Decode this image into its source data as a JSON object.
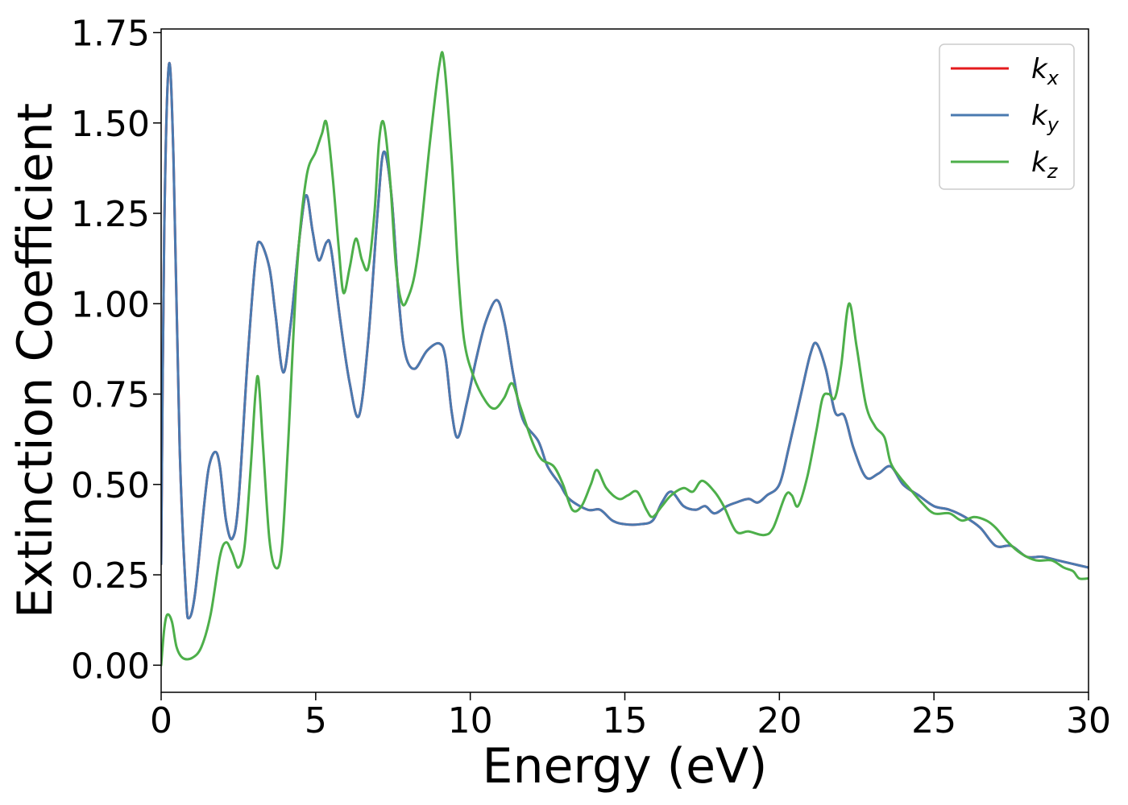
{
  "chart_data": {
    "type": "line",
    "title": "",
    "xlabel": "Energy (eV)",
    "ylabel": "Extinction Coefficient",
    "xlim": [
      0,
      30
    ],
    "ylim": [
      -0.075,
      1.76
    ],
    "x_ticks": [
      0,
      5,
      10,
      15,
      20,
      25,
      30
    ],
    "x_tick_labels": [
      "0",
      "5",
      "10",
      "15",
      "20",
      "25",
      "30"
    ],
    "y_ticks": [
      0,
      0.25,
      0.5,
      0.75,
      1.0,
      1.25,
      1.5,
      1.75
    ],
    "y_tick_labels": [
      "0.00",
      "0.25",
      "0.50",
      "0.75",
      "1.00",
      "1.25",
      "1.50",
      "1.75"
    ],
    "grid": false,
    "legend_position": "top-right",
    "series": [
      {
        "name": "k",
        "subscript": "x",
        "color": "#e41a1c",
        "points": [
          [
            0,
            0.28
          ],
          [
            0.1,
            1.2
          ],
          [
            0.25,
            1.66
          ],
          [
            0.4,
            1.4
          ],
          [
            0.6,
            0.6
          ],
          [
            0.8,
            0.2
          ],
          [
            0.9,
            0.13
          ],
          [
            1.1,
            0.2
          ],
          [
            1.4,
            0.45
          ],
          [
            1.55,
            0.55
          ],
          [
            1.75,
            0.59
          ],
          [
            1.9,
            0.55
          ],
          [
            2.1,
            0.4
          ],
          [
            2.3,
            0.35
          ],
          [
            2.5,
            0.45
          ],
          [
            2.8,
            0.85
          ],
          [
            3.05,
            1.12
          ],
          [
            3.2,
            1.17
          ],
          [
            3.5,
            1.1
          ],
          [
            3.7,
            0.97
          ],
          [
            3.95,
            0.81
          ],
          [
            4.2,
            0.95
          ],
          [
            4.5,
            1.2
          ],
          [
            4.7,
            1.3
          ],
          [
            4.9,
            1.2
          ],
          [
            5.1,
            1.12
          ],
          [
            5.35,
            1.17
          ],
          [
            5.5,
            1.15
          ],
          [
            5.8,
            0.95
          ],
          [
            6.1,
            0.78
          ],
          [
            6.4,
            0.69
          ],
          [
            6.7,
            0.9
          ],
          [
            7.0,
            1.25
          ],
          [
            7.2,
            1.42
          ],
          [
            7.45,
            1.3
          ],
          [
            7.7,
            1.0
          ],
          [
            7.9,
            0.86
          ],
          [
            8.2,
            0.82
          ],
          [
            8.6,
            0.87
          ],
          [
            9.0,
            0.89
          ],
          [
            9.2,
            0.85
          ],
          [
            9.4,
            0.7
          ],
          [
            9.6,
            0.63
          ],
          [
            9.9,
            0.73
          ],
          [
            10.2,
            0.85
          ],
          [
            10.5,
            0.95
          ],
          [
            10.85,
            1.01
          ],
          [
            11.1,
            0.95
          ],
          [
            11.4,
            0.8
          ],
          [
            11.7,
            0.68
          ],
          [
            12.2,
            0.62
          ],
          [
            12.5,
            0.55
          ],
          [
            12.9,
            0.5
          ],
          [
            13.2,
            0.46
          ],
          [
            13.8,
            0.43
          ],
          [
            14.2,
            0.43
          ],
          [
            14.6,
            0.4
          ],
          [
            15.0,
            0.39
          ],
          [
            15.5,
            0.39
          ],
          [
            15.9,
            0.4
          ],
          [
            16.2,
            0.45
          ],
          [
            16.5,
            0.48
          ],
          [
            16.9,
            0.44
          ],
          [
            17.3,
            0.43
          ],
          [
            17.6,
            0.44
          ],
          [
            17.9,
            0.42
          ],
          [
            18.3,
            0.44
          ],
          [
            18.6,
            0.45
          ],
          [
            19.0,
            0.46
          ],
          [
            19.3,
            0.45
          ],
          [
            19.6,
            0.47
          ],
          [
            20.0,
            0.5
          ],
          [
            20.3,
            0.6
          ],
          [
            20.7,
            0.75
          ],
          [
            21.0,
            0.86
          ],
          [
            21.2,
            0.89
          ],
          [
            21.5,
            0.82
          ],
          [
            21.8,
            0.7
          ],
          [
            22.1,
            0.69
          ],
          [
            22.4,
            0.6
          ],
          [
            22.8,
            0.52
          ],
          [
            23.2,
            0.53
          ],
          [
            23.6,
            0.55
          ],
          [
            24.0,
            0.5
          ],
          [
            24.5,
            0.47
          ],
          [
            25.0,
            0.44
          ],
          [
            25.5,
            0.43
          ],
          [
            26.0,
            0.41
          ],
          [
            26.5,
            0.38
          ],
          [
            27.0,
            0.33
          ],
          [
            27.5,
            0.33
          ],
          [
            28.0,
            0.3
          ],
          [
            28.5,
            0.3
          ],
          [
            29.0,
            0.29
          ],
          [
            29.5,
            0.28
          ],
          [
            30,
            0.27
          ]
        ]
      },
      {
        "name": "k",
        "subscript": "y",
        "color": "#4a7ab0",
        "points": [
          [
            0,
            0.28
          ],
          [
            0.1,
            1.2
          ],
          [
            0.25,
            1.66
          ],
          [
            0.4,
            1.4
          ],
          [
            0.6,
            0.6
          ],
          [
            0.8,
            0.2
          ],
          [
            0.9,
            0.13
          ],
          [
            1.1,
            0.2
          ],
          [
            1.4,
            0.45
          ],
          [
            1.55,
            0.55
          ],
          [
            1.75,
            0.59
          ],
          [
            1.9,
            0.55
          ],
          [
            2.1,
            0.4
          ],
          [
            2.3,
            0.35
          ],
          [
            2.5,
            0.45
          ],
          [
            2.8,
            0.85
          ],
          [
            3.05,
            1.12
          ],
          [
            3.2,
            1.17
          ],
          [
            3.5,
            1.1
          ],
          [
            3.7,
            0.97
          ],
          [
            3.95,
            0.81
          ],
          [
            4.2,
            0.95
          ],
          [
            4.5,
            1.2
          ],
          [
            4.7,
            1.3
          ],
          [
            4.9,
            1.2
          ],
          [
            5.1,
            1.12
          ],
          [
            5.35,
            1.17
          ],
          [
            5.5,
            1.15
          ],
          [
            5.8,
            0.95
          ],
          [
            6.1,
            0.78
          ],
          [
            6.4,
            0.69
          ],
          [
            6.7,
            0.9
          ],
          [
            7.0,
            1.25
          ],
          [
            7.2,
            1.42
          ],
          [
            7.45,
            1.3
          ],
          [
            7.7,
            1.0
          ],
          [
            7.9,
            0.86
          ],
          [
            8.2,
            0.82
          ],
          [
            8.6,
            0.87
          ],
          [
            9.0,
            0.89
          ],
          [
            9.2,
            0.85
          ],
          [
            9.4,
            0.7
          ],
          [
            9.6,
            0.63
          ],
          [
            9.9,
            0.73
          ],
          [
            10.2,
            0.85
          ],
          [
            10.5,
            0.95
          ],
          [
            10.85,
            1.01
          ],
          [
            11.1,
            0.95
          ],
          [
            11.4,
            0.8
          ],
          [
            11.7,
            0.68
          ],
          [
            12.2,
            0.62
          ],
          [
            12.5,
            0.55
          ],
          [
            12.9,
            0.5
          ],
          [
            13.2,
            0.46
          ],
          [
            13.8,
            0.43
          ],
          [
            14.2,
            0.43
          ],
          [
            14.6,
            0.4
          ],
          [
            15.0,
            0.39
          ],
          [
            15.5,
            0.39
          ],
          [
            15.9,
            0.4
          ],
          [
            16.2,
            0.45
          ],
          [
            16.5,
            0.48
          ],
          [
            16.9,
            0.44
          ],
          [
            17.3,
            0.43
          ],
          [
            17.6,
            0.44
          ],
          [
            17.9,
            0.42
          ],
          [
            18.3,
            0.44
          ],
          [
            18.6,
            0.45
          ],
          [
            19.0,
            0.46
          ],
          [
            19.3,
            0.45
          ],
          [
            19.6,
            0.47
          ],
          [
            20.0,
            0.5
          ],
          [
            20.3,
            0.6
          ],
          [
            20.7,
            0.75
          ],
          [
            21.0,
            0.86
          ],
          [
            21.2,
            0.89
          ],
          [
            21.5,
            0.82
          ],
          [
            21.8,
            0.7
          ],
          [
            22.1,
            0.69
          ],
          [
            22.4,
            0.6
          ],
          [
            22.8,
            0.52
          ],
          [
            23.2,
            0.53
          ],
          [
            23.6,
            0.55
          ],
          [
            24.0,
            0.5
          ],
          [
            24.5,
            0.47
          ],
          [
            25.0,
            0.44
          ],
          [
            25.5,
            0.43
          ],
          [
            26.0,
            0.41
          ],
          [
            26.5,
            0.38
          ],
          [
            27.0,
            0.33
          ],
          [
            27.5,
            0.33
          ],
          [
            28.0,
            0.3
          ],
          [
            28.5,
            0.3
          ],
          [
            29.0,
            0.29
          ],
          [
            29.5,
            0.28
          ],
          [
            30,
            0.27
          ]
        ]
      },
      {
        "name": "k",
        "subscript": "z",
        "color": "#4daf4a",
        "points": [
          [
            0,
            0.0
          ],
          [
            0.1,
            0.1
          ],
          [
            0.2,
            0.14
          ],
          [
            0.35,
            0.12
          ],
          [
            0.5,
            0.05
          ],
          [
            0.7,
            0.02
          ],
          [
            1.0,
            0.02
          ],
          [
            1.3,
            0.05
          ],
          [
            1.6,
            0.14
          ],
          [
            1.9,
            0.3
          ],
          [
            2.1,
            0.34
          ],
          [
            2.3,
            0.31
          ],
          [
            2.5,
            0.27
          ],
          [
            2.7,
            0.33
          ],
          [
            2.9,
            0.55
          ],
          [
            3.05,
            0.75
          ],
          [
            3.15,
            0.79
          ],
          [
            3.3,
            0.6
          ],
          [
            3.5,
            0.35
          ],
          [
            3.7,
            0.27
          ],
          [
            3.9,
            0.32
          ],
          [
            4.1,
            0.6
          ],
          [
            4.4,
            1.1
          ],
          [
            4.7,
            1.35
          ],
          [
            5.0,
            1.42
          ],
          [
            5.2,
            1.47
          ],
          [
            5.35,
            1.5
          ],
          [
            5.55,
            1.35
          ],
          [
            5.75,
            1.15
          ],
          [
            5.9,
            1.03
          ],
          [
            6.1,
            1.1
          ],
          [
            6.3,
            1.18
          ],
          [
            6.5,
            1.12
          ],
          [
            6.7,
            1.1
          ],
          [
            6.9,
            1.25
          ],
          [
            7.05,
            1.45
          ],
          [
            7.2,
            1.5
          ],
          [
            7.4,
            1.35
          ],
          [
            7.6,
            1.1
          ],
          [
            7.8,
            1.0
          ],
          [
            8.0,
            1.02
          ],
          [
            8.2,
            1.08
          ],
          [
            8.4,
            1.2
          ],
          [
            8.7,
            1.45
          ],
          [
            9.0,
            1.66
          ],
          [
            9.15,
            1.67
          ],
          [
            9.4,
            1.4
          ],
          [
            9.6,
            1.1
          ],
          [
            9.8,
            0.9
          ],
          [
            10.1,
            0.8
          ],
          [
            10.5,
            0.73
          ],
          [
            10.8,
            0.71
          ],
          [
            11.1,
            0.74
          ],
          [
            11.35,
            0.78
          ],
          [
            11.6,
            0.72
          ],
          [
            12.0,
            0.62
          ],
          [
            12.3,
            0.57
          ],
          [
            12.7,
            0.55
          ],
          [
            13.0,
            0.5
          ],
          [
            13.3,
            0.43
          ],
          [
            13.6,
            0.44
          ],
          [
            13.9,
            0.5
          ],
          [
            14.1,
            0.54
          ],
          [
            14.4,
            0.49
          ],
          [
            14.8,
            0.46
          ],
          [
            15.1,
            0.47
          ],
          [
            15.4,
            0.48
          ],
          [
            15.7,
            0.43
          ],
          [
            15.9,
            0.41
          ],
          [
            16.2,
            0.44
          ],
          [
            16.5,
            0.47
          ],
          [
            16.9,
            0.49
          ],
          [
            17.2,
            0.48
          ],
          [
            17.5,
            0.51
          ],
          [
            17.9,
            0.48
          ],
          [
            18.2,
            0.44
          ],
          [
            18.6,
            0.37
          ],
          [
            19.0,
            0.37
          ],
          [
            19.5,
            0.36
          ],
          [
            19.8,
            0.38
          ],
          [
            20.2,
            0.47
          ],
          [
            20.4,
            0.47
          ],
          [
            20.6,
            0.44
          ],
          [
            20.9,
            0.52
          ],
          [
            21.2,
            0.65
          ],
          [
            21.4,
            0.74
          ],
          [
            21.6,
            0.75
          ],
          [
            21.8,
            0.74
          ],
          [
            22.0,
            0.83
          ],
          [
            22.25,
            1.0
          ],
          [
            22.5,
            0.88
          ],
          [
            22.8,
            0.72
          ],
          [
            23.1,
            0.66
          ],
          [
            23.4,
            0.63
          ],
          [
            23.6,
            0.56
          ],
          [
            23.9,
            0.52
          ],
          [
            24.2,
            0.49
          ],
          [
            24.6,
            0.45
          ],
          [
            25.0,
            0.42
          ],
          [
            25.5,
            0.42
          ],
          [
            25.9,
            0.4
          ],
          [
            26.3,
            0.41
          ],
          [
            26.7,
            0.4
          ],
          [
            27.0,
            0.38
          ],
          [
            27.4,
            0.34
          ],
          [
            27.8,
            0.31
          ],
          [
            28.3,
            0.29
          ],
          [
            28.8,
            0.29
          ],
          [
            29.2,
            0.27
          ],
          [
            29.5,
            0.26
          ],
          [
            29.7,
            0.24
          ],
          [
            30.0,
            0.24
          ]
        ]
      }
    ]
  }
}
